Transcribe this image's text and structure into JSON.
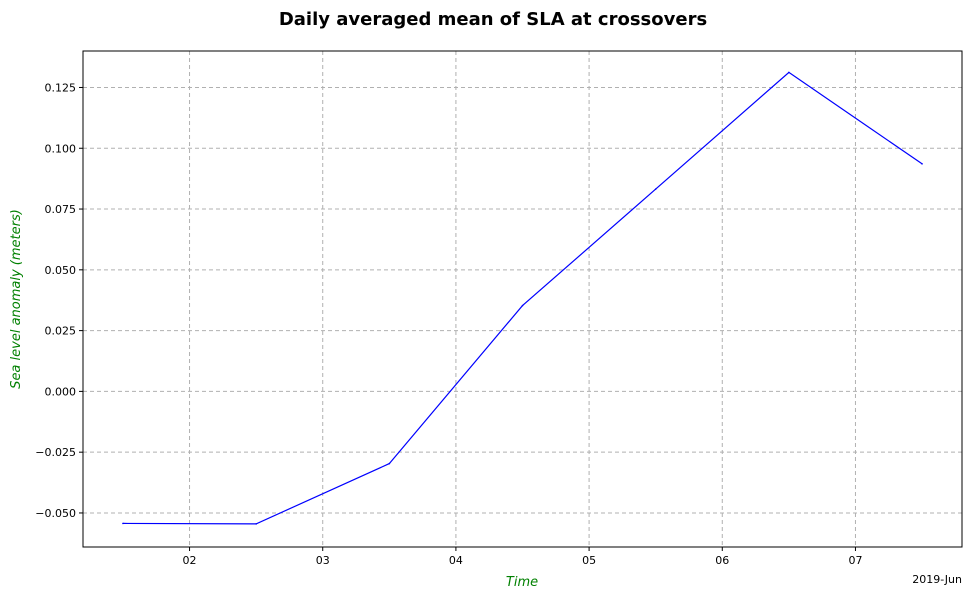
{
  "chart_data": {
    "type": "line",
    "title": "Daily averaged mean of SLA at crossovers",
    "xlabel": "Time",
    "ylabel": "Sea level anomaly (meters)",
    "label_color": "#008000",
    "line_color": "#0000ff",
    "x_offset_label": "2019-Jun",
    "xlim": [
      1.2,
      7.8
    ],
    "ylim": [
      -0.064,
      0.14
    ],
    "x_ticks": [
      2,
      3,
      4,
      5,
      6,
      7
    ],
    "x_tick_labels": [
      "02",
      "03",
      "04",
      "05",
      "06",
      "07"
    ],
    "y_ticks": [
      -0.05,
      -0.025,
      0.0,
      0.025,
      0.05,
      0.075,
      0.1,
      0.125
    ],
    "y_tick_labels": [
      "−0.050",
      "−0.025",
      "0.000",
      "0.025",
      "0.050",
      "0.075",
      "0.100",
      "0.125"
    ],
    "grid": true,
    "series": [
      {
        "name": "SLA",
        "x": [
          1.5,
          2.5,
          3.5,
          4.5,
          5.5,
          6.5,
          7.5
        ],
        "y": [
          -0.0543,
          -0.0545,
          -0.0297,
          0.0353,
          0.0832,
          0.1312,
          0.0936
        ]
      }
    ]
  }
}
